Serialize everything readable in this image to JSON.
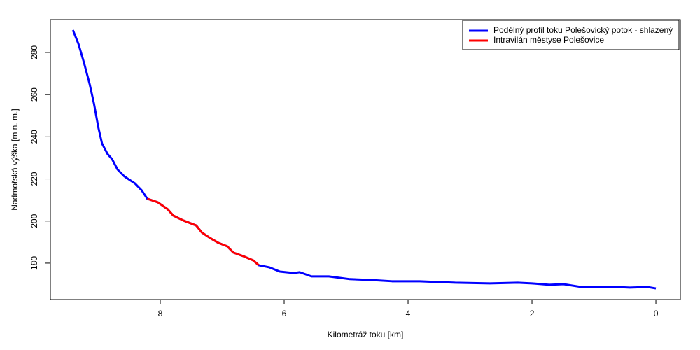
{
  "chart_data": {
    "type": "line",
    "x_label": "Kilometráž toku [km]",
    "y_label": "Nadmořská výška [m n. m.]",
    "xlim": [
      9.774,
      -0.395
    ],
    "ylim": [
      162.7,
      295.6
    ],
    "xticks": [
      8,
      6,
      4,
      2,
      0
    ],
    "yticks": [
      180,
      200,
      220,
      240,
      260,
      280
    ],
    "legend": "top-right",
    "series": [
      {
        "name": "Podélný profil toku Polešovický potok - shlazený",
        "color": "#0000ff",
        "x": [
          9.41,
          9.32,
          9.23,
          9.14,
          9.07,
          9.0,
          8.94,
          8.85,
          8.78,
          8.69,
          8.58,
          8.41,
          8.3,
          8.21,
          8.04,
          7.88,
          7.79,
          7.63,
          7.42,
          7.33,
          7.2,
          7.06,
          6.92,
          6.82,
          6.66,
          6.5,
          6.41,
          6.24,
          6.07,
          5.84,
          5.75,
          5.56,
          5.28,
          4.94,
          4.6,
          4.26,
          3.81,
          3.24,
          2.68,
          2.23,
          2.0,
          1.72,
          1.49,
          1.21,
          0.64,
          0.42,
          0.14,
          0
        ],
        "values": [
          290.6,
          284.0,
          275.0,
          265.0,
          255.7,
          244.5,
          236.8,
          231.8,
          229.5,
          224.5,
          221.2,
          217.9,
          214.6,
          210.6,
          208.9,
          205.6,
          202.6,
          200.3,
          197.9,
          194.6,
          192.0,
          189.6,
          188.0,
          185.0,
          183.3,
          181.3,
          179.0,
          178.0,
          176.0,
          175.3,
          175.7,
          173.7,
          173.7,
          172.4,
          172.0,
          171.4,
          171.4,
          170.7,
          170.4,
          170.7,
          170.4,
          169.7,
          170.0,
          168.7,
          168.7,
          168.4,
          168.7,
          168.0
        ]
      },
      {
        "name": "Intravilán městyse Polešovice",
        "color": "#ff0000",
        "x": [
          8.21,
          8.04,
          7.88,
          7.79,
          7.63,
          7.42,
          7.33,
          7.2,
          7.06,
          6.92,
          6.82,
          6.66,
          6.5,
          6.41
        ],
        "values": [
          210.6,
          208.9,
          205.6,
          202.6,
          200.3,
          197.9,
          194.6,
          192.0,
          189.6,
          188.0,
          185.0,
          183.3,
          181.3,
          179.0
        ]
      }
    ]
  }
}
